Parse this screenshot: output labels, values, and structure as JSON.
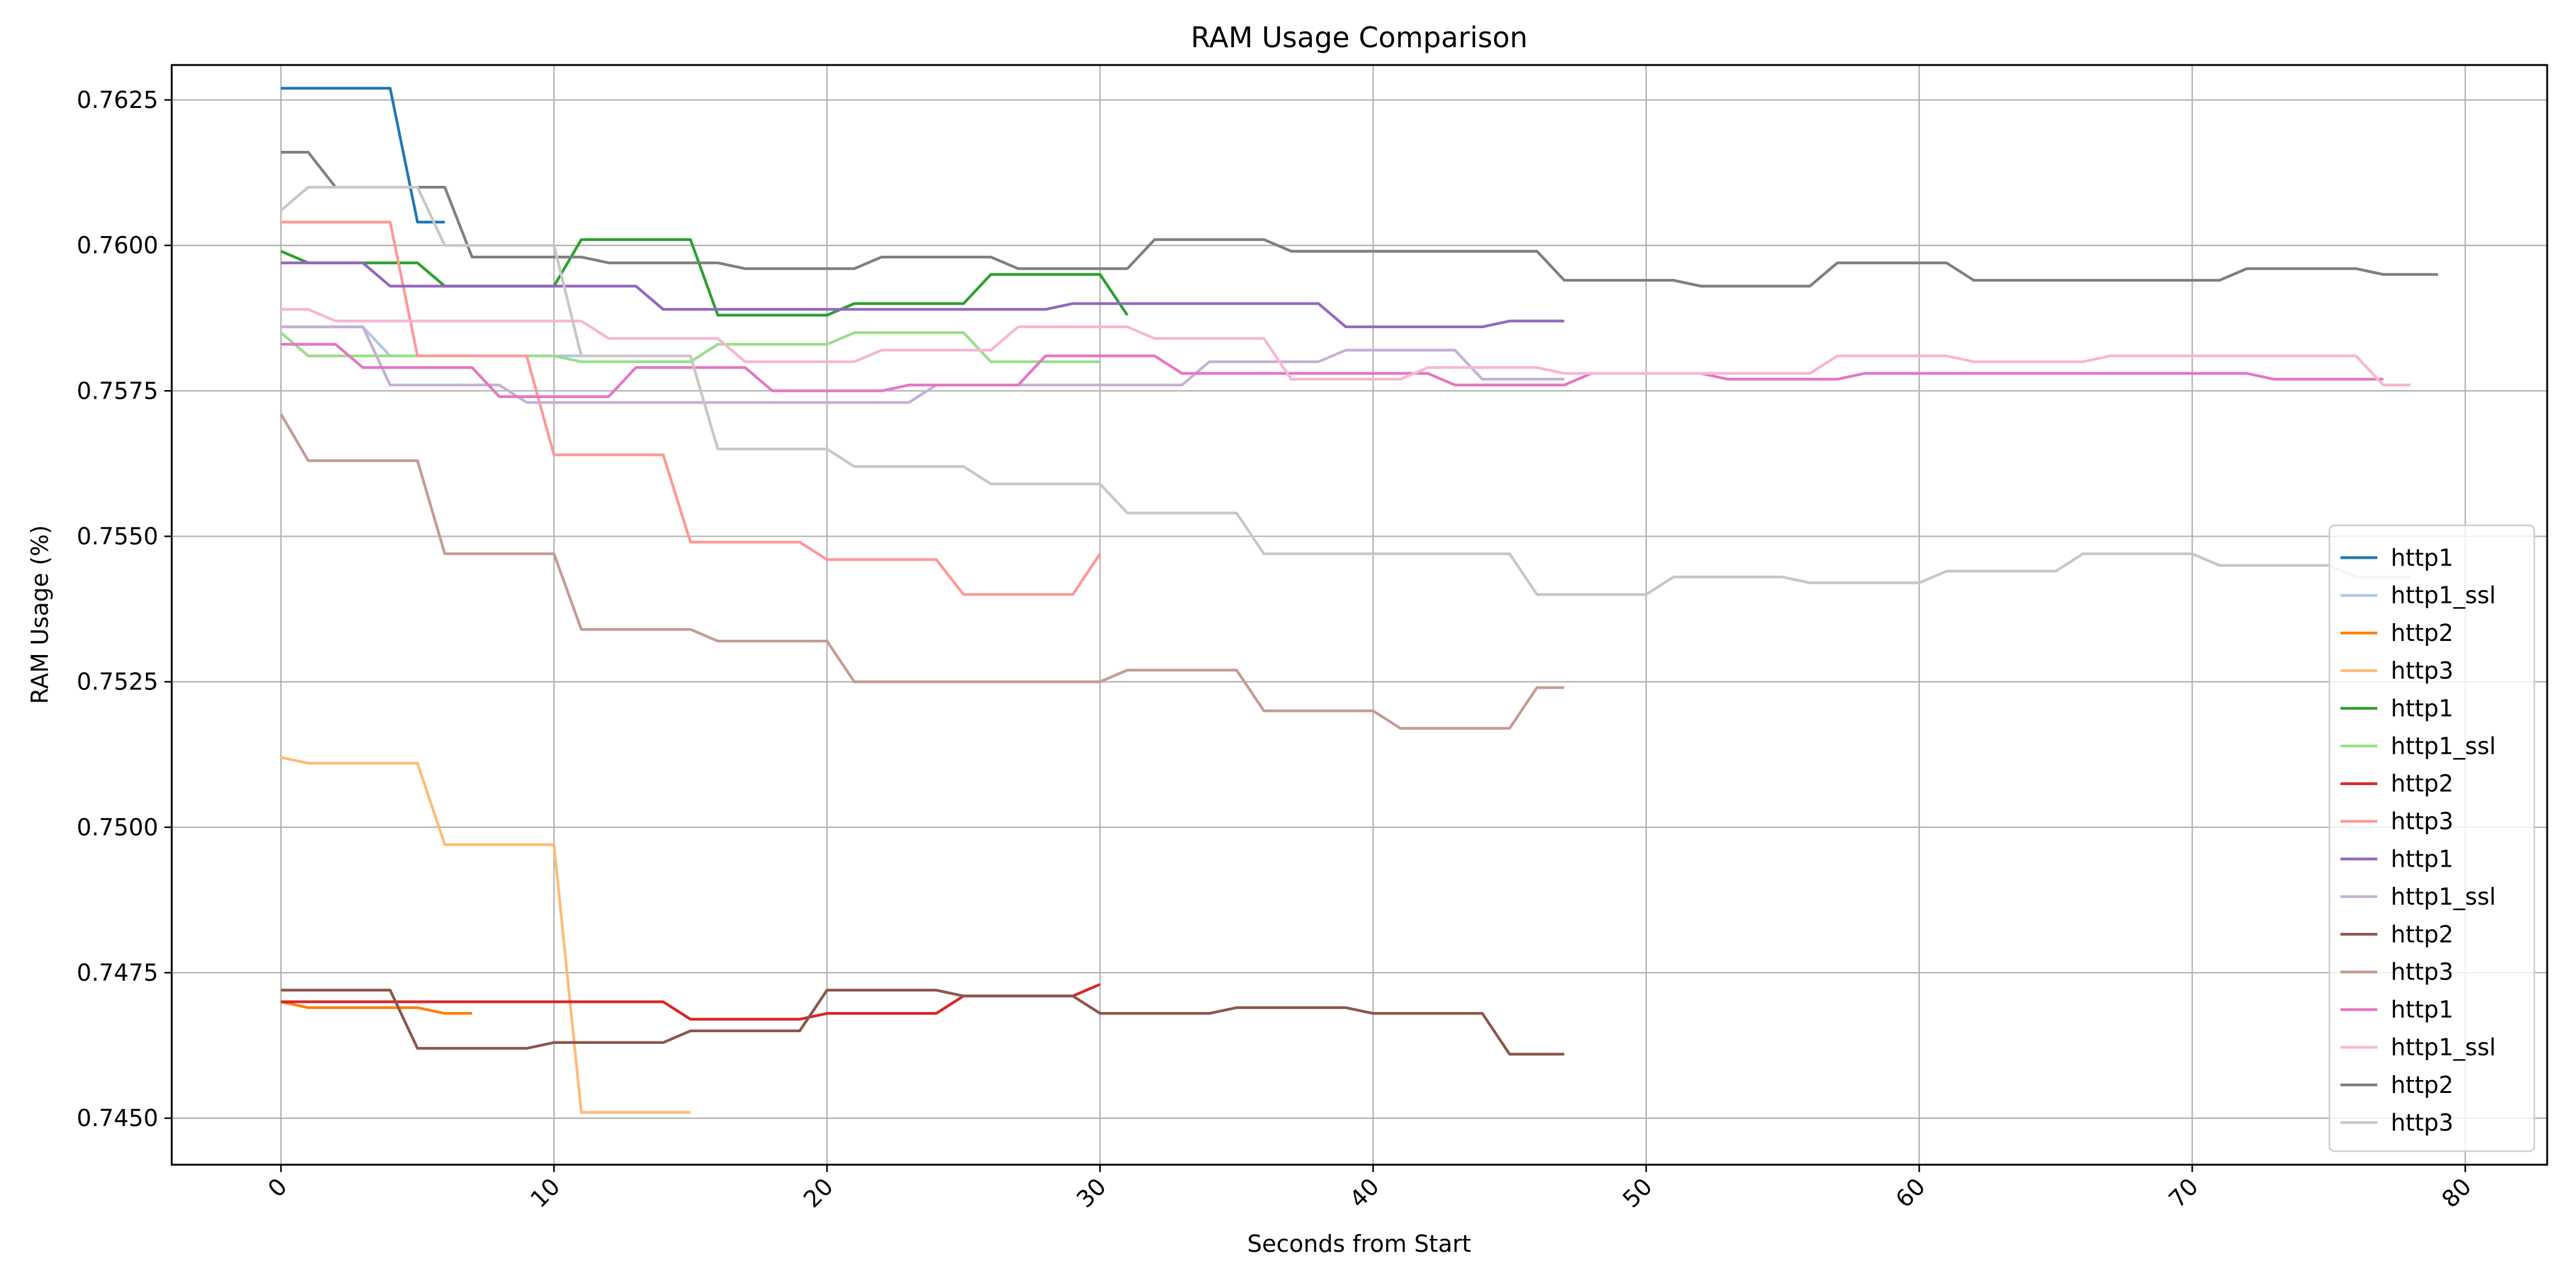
{
  "chart_data": {
    "type": "line",
    "title": "RAM Usage Comparison",
    "xlabel": "Seconds from Start",
    "ylabel": "RAM Usage (%)",
    "xlim": [
      -4,
      83
    ],
    "ylim": [
      0.7442,
      0.7631
    ],
    "xticks": [
      0,
      10,
      20,
      30,
      40,
      50,
      60,
      70,
      80
    ],
    "yticks": [
      0.745,
      0.7475,
      0.75,
      0.7525,
      0.755,
      0.7575,
      0.76,
      0.7625
    ],
    "ytick_labels": [
      "0.7450",
      "0.7475",
      "0.7500",
      "0.7525",
      "0.7550",
      "0.7575",
      "0.7600",
      "0.7625"
    ],
    "grid": true,
    "legend_position": "lower-right",
    "series": [
      {
        "name": "http1",
        "color": "#1f77b4",
        "points": [
          [
            0,
            0.7627
          ],
          [
            4,
            0.7627
          ],
          [
            5,
            0.7604
          ],
          [
            6,
            0.7604
          ]
        ]
      },
      {
        "name": "http1_ssl",
        "color": "#aec7e8",
        "points": [
          [
            0,
            0.7586
          ],
          [
            3,
            0.7586
          ],
          [
            4,
            0.7581
          ],
          [
            15,
            0.7581
          ]
        ]
      },
      {
        "name": "http2",
        "color": "#ff7f0e",
        "points": [
          [
            0,
            0.747
          ],
          [
            1,
            0.7469
          ],
          [
            5,
            0.7469
          ],
          [
            6,
            0.7468
          ],
          [
            7,
            0.7468
          ]
        ]
      },
      {
        "name": "http3",
        "color": "#ffbb78",
        "points": [
          [
            0,
            0.7512
          ],
          [
            1,
            0.7511
          ],
          [
            5,
            0.7511
          ],
          [
            6,
            0.7497
          ],
          [
            10,
            0.7497
          ],
          [
            11,
            0.7451
          ],
          [
            15,
            0.7451
          ]
        ]
      },
      {
        "name": "http1",
        "color": "#2ca02c",
        "points": [
          [
            0,
            0.7599
          ],
          [
            1,
            0.7597
          ],
          [
            5,
            0.7597
          ],
          [
            6,
            0.7593
          ],
          [
            10,
            0.7593
          ],
          [
            11,
            0.7601
          ],
          [
            15,
            0.7601
          ],
          [
            16,
            0.7588
          ],
          [
            20,
            0.7588
          ],
          [
            21,
            0.759
          ],
          [
            25,
            0.759
          ],
          [
            26,
            0.7595
          ],
          [
            30,
            0.7595
          ],
          [
            31,
            0.7588
          ]
        ]
      },
      {
        "name": "http1_ssl",
        "color": "#98df8a",
        "points": [
          [
            0,
            0.7585
          ],
          [
            1,
            0.7581
          ],
          [
            10,
            0.7581
          ],
          [
            11,
            0.758
          ],
          [
            15,
            0.758
          ],
          [
            16,
            0.7583
          ],
          [
            20,
            0.7583
          ],
          [
            21,
            0.7585
          ],
          [
            25,
            0.7585
          ],
          [
            26,
            0.758
          ],
          [
            30,
            0.758
          ]
        ]
      },
      {
        "name": "http2",
        "color": "#d62728",
        "points": [
          [
            0,
            0.747
          ],
          [
            14,
            0.747
          ],
          [
            15,
            0.7467
          ],
          [
            19,
            0.7467
          ],
          [
            20,
            0.7468
          ],
          [
            24,
            0.7468
          ],
          [
            25,
            0.7471
          ],
          [
            29,
            0.7471
          ],
          [
            30,
            0.7473
          ]
        ]
      },
      {
        "name": "http3",
        "color": "#ff9896",
        "points": [
          [
            0,
            0.7604
          ],
          [
            4,
            0.7604
          ],
          [
            5,
            0.7581
          ],
          [
            9,
            0.7581
          ],
          [
            10,
            0.7564
          ],
          [
            14,
            0.7564
          ],
          [
            15,
            0.7549
          ],
          [
            19,
            0.7549
          ],
          [
            20,
            0.7546
          ],
          [
            24,
            0.7546
          ],
          [
            25,
            0.754
          ],
          [
            29,
            0.754
          ],
          [
            30,
            0.7547
          ]
        ]
      },
      {
        "name": "http1",
        "color": "#9467bd",
        "points": [
          [
            0,
            0.7597
          ],
          [
            3,
            0.7597
          ],
          [
            4,
            0.7593
          ],
          [
            13,
            0.7593
          ],
          [
            14,
            0.7589
          ],
          [
            18,
            0.7589
          ],
          [
            19,
            0.7589
          ],
          [
            25,
            0.7589
          ],
          [
            28,
            0.7589
          ],
          [
            29,
            0.759
          ],
          [
            34,
            0.759
          ],
          [
            38,
            0.759
          ],
          [
            39,
            0.7586
          ],
          [
            44,
            0.7586
          ],
          [
            45,
            0.7587
          ],
          [
            47,
            0.7587
          ]
        ]
      },
      {
        "name": "http1_ssl",
        "color": "#c5b0d5",
        "points": [
          [
            0,
            0.7586
          ],
          [
            3,
            0.7586
          ],
          [
            4,
            0.7576
          ],
          [
            8,
            0.7576
          ],
          [
            9,
            0.7573
          ],
          [
            13,
            0.7573
          ],
          [
            14,
            0.7573
          ],
          [
            19,
            0.7573
          ],
          [
            23,
            0.7573
          ],
          [
            24,
            0.7576
          ],
          [
            33,
            0.7576
          ],
          [
            34,
            0.758
          ],
          [
            38,
            0.758
          ],
          [
            39,
            0.7582
          ],
          [
            43,
            0.7582
          ],
          [
            44,
            0.7577
          ],
          [
            47,
            0.7577
          ]
        ]
      },
      {
        "name": "http2",
        "color": "#8c564b",
        "points": [
          [
            0,
            0.7472
          ],
          [
            4,
            0.7472
          ],
          [
            5,
            0.7462
          ],
          [
            9,
            0.7462
          ],
          [
            10,
            0.7463
          ],
          [
            14,
            0.7463
          ],
          [
            15,
            0.7465
          ],
          [
            19,
            0.7465
          ],
          [
            20,
            0.7472
          ],
          [
            24,
            0.7472
          ],
          [
            25,
            0.7471
          ],
          [
            29,
            0.7471
          ],
          [
            30,
            0.7468
          ],
          [
            34,
            0.7468
          ],
          [
            35,
            0.7469
          ],
          [
            39,
            0.7469
          ],
          [
            40,
            0.7468
          ],
          [
            44,
            0.7468
          ],
          [
            45,
            0.7461
          ],
          [
            47,
            0.7461
          ]
        ]
      },
      {
        "name": "http3",
        "color": "#c49c94",
        "points": [
          [
            0,
            0.7571
          ],
          [
            1,
            0.7563
          ],
          [
            5,
            0.7563
          ],
          [
            6,
            0.7547
          ],
          [
            10,
            0.7547
          ],
          [
            11,
            0.7534
          ],
          [
            15,
            0.7534
          ],
          [
            16,
            0.7532
          ],
          [
            20,
            0.7532
          ],
          [
            21,
            0.7525
          ],
          [
            25,
            0.7525
          ],
          [
            30,
            0.7525
          ],
          [
            31,
            0.7527
          ],
          [
            35,
            0.7527
          ],
          [
            36,
            0.752
          ],
          [
            40,
            0.752
          ],
          [
            41,
            0.7517
          ],
          [
            45,
            0.7517
          ],
          [
            46,
            0.7524
          ],
          [
            47,
            0.7524
          ]
        ]
      },
      {
        "name": "http1",
        "color": "#e377c2",
        "points": [
          [
            0,
            0.7583
          ],
          [
            2,
            0.7583
          ],
          [
            3,
            0.7579
          ],
          [
            7,
            0.7579
          ],
          [
            8,
            0.7574
          ],
          [
            12,
            0.7574
          ],
          [
            13,
            0.7579
          ],
          [
            17,
            0.7579
          ],
          [
            18,
            0.7575
          ],
          [
            22,
            0.7575
          ],
          [
            23,
            0.7576
          ],
          [
            27,
            0.7576
          ],
          [
            28,
            0.7581
          ],
          [
            32,
            0.7581
          ],
          [
            33,
            0.7578
          ],
          [
            37,
            0.7578
          ],
          [
            42,
            0.7578
          ],
          [
            43,
            0.7576
          ],
          [
            47,
            0.7576
          ],
          [
            48,
            0.7578
          ],
          [
            52,
            0.7578
          ],
          [
            53,
            0.7577
          ],
          [
            57,
            0.7577
          ],
          [
            58,
            0.7578
          ],
          [
            62,
            0.7578
          ],
          [
            66,
            0.7578
          ],
          [
            72,
            0.7578
          ],
          [
            73,
            0.7577
          ],
          [
            77,
            0.7577
          ]
        ]
      },
      {
        "name": "http1_ssl",
        "color": "#f7b6d2",
        "points": [
          [
            0,
            0.7589
          ],
          [
            1,
            0.7589
          ],
          [
            2,
            0.7587
          ],
          [
            6,
            0.7587
          ],
          [
            7,
            0.7587
          ],
          [
            11,
            0.7587
          ],
          [
            12,
            0.7584
          ],
          [
            16,
            0.7584
          ],
          [
            17,
            0.758
          ],
          [
            21,
            0.758
          ],
          [
            22,
            0.7582
          ],
          [
            26,
            0.7582
          ],
          [
            27,
            0.7586
          ],
          [
            31,
            0.7586
          ],
          [
            32,
            0.7584
          ],
          [
            36,
            0.7584
          ],
          [
            37,
            0.7577
          ],
          [
            41,
            0.7577
          ],
          [
            42,
            0.7579
          ],
          [
            46,
            0.7579
          ],
          [
            47,
            0.7578
          ],
          [
            51,
            0.7578
          ],
          [
            56,
            0.7578
          ],
          [
            57,
            0.7581
          ],
          [
            61,
            0.7581
          ],
          [
            62,
            0.758
          ],
          [
            66,
            0.758
          ],
          [
            67,
            0.7581
          ],
          [
            71,
            0.7581
          ],
          [
            76,
            0.7581
          ],
          [
            77,
            0.7576
          ],
          [
            78,
            0.7576
          ]
        ]
      },
      {
        "name": "http2",
        "color": "#7f7f7f",
        "points": [
          [
            0,
            0.7616
          ],
          [
            1,
            0.7616
          ],
          [
            2,
            0.761
          ],
          [
            5,
            0.761
          ],
          [
            6,
            0.761
          ],
          [
            7,
            0.7598
          ],
          [
            11,
            0.7598
          ],
          [
            12,
            0.7597
          ],
          [
            16,
            0.7597
          ],
          [
            17,
            0.7596
          ],
          [
            21,
            0.7596
          ],
          [
            22,
            0.7598
          ],
          [
            26,
            0.7598
          ],
          [
            27,
            0.7596
          ],
          [
            31,
            0.7596
          ],
          [
            32,
            0.7601
          ],
          [
            36,
            0.7601
          ],
          [
            37,
            0.7599
          ],
          [
            41,
            0.7599
          ],
          [
            46,
            0.7599
          ],
          [
            47,
            0.7594
          ],
          [
            51,
            0.7594
          ],
          [
            52,
            0.7593
          ],
          [
            56,
            0.7593
          ],
          [
            57,
            0.7597
          ],
          [
            61,
            0.7597
          ],
          [
            62,
            0.7594
          ],
          [
            66,
            0.7594
          ],
          [
            71,
            0.7594
          ],
          [
            72,
            0.7596
          ],
          [
            76,
            0.7596
          ],
          [
            77,
            0.7595
          ],
          [
            79,
            0.7595
          ]
        ]
      },
      {
        "name": "http3",
        "color": "#c7c7c7",
        "points": [
          [
            0,
            0.7606
          ],
          [
            1,
            0.761
          ],
          [
            5,
            0.761
          ],
          [
            6,
            0.76
          ],
          [
            10,
            0.76
          ],
          [
            11,
            0.7581
          ],
          [
            15,
            0.7581
          ],
          [
            16,
            0.7565
          ],
          [
            20,
            0.7565
          ],
          [
            21,
            0.7562
          ],
          [
            25,
            0.7562
          ],
          [
            26,
            0.7559
          ],
          [
            30,
            0.7559
          ],
          [
            31,
            0.7554
          ],
          [
            35,
            0.7554
          ],
          [
            36,
            0.7547
          ],
          [
            40,
            0.7547
          ],
          [
            45,
            0.7547
          ],
          [
            46,
            0.754
          ],
          [
            50,
            0.754
          ],
          [
            51,
            0.7543
          ],
          [
            55,
            0.7543
          ],
          [
            56,
            0.7542
          ],
          [
            60,
            0.7542
          ],
          [
            61,
            0.7544
          ],
          [
            65,
            0.7544
          ],
          [
            66,
            0.7547
          ],
          [
            70,
            0.7547
          ],
          [
            71,
            0.7545
          ],
          [
            75,
            0.7545
          ],
          [
            76,
            0.7543
          ],
          [
            78,
            0.7543
          ]
        ]
      }
    ]
  }
}
